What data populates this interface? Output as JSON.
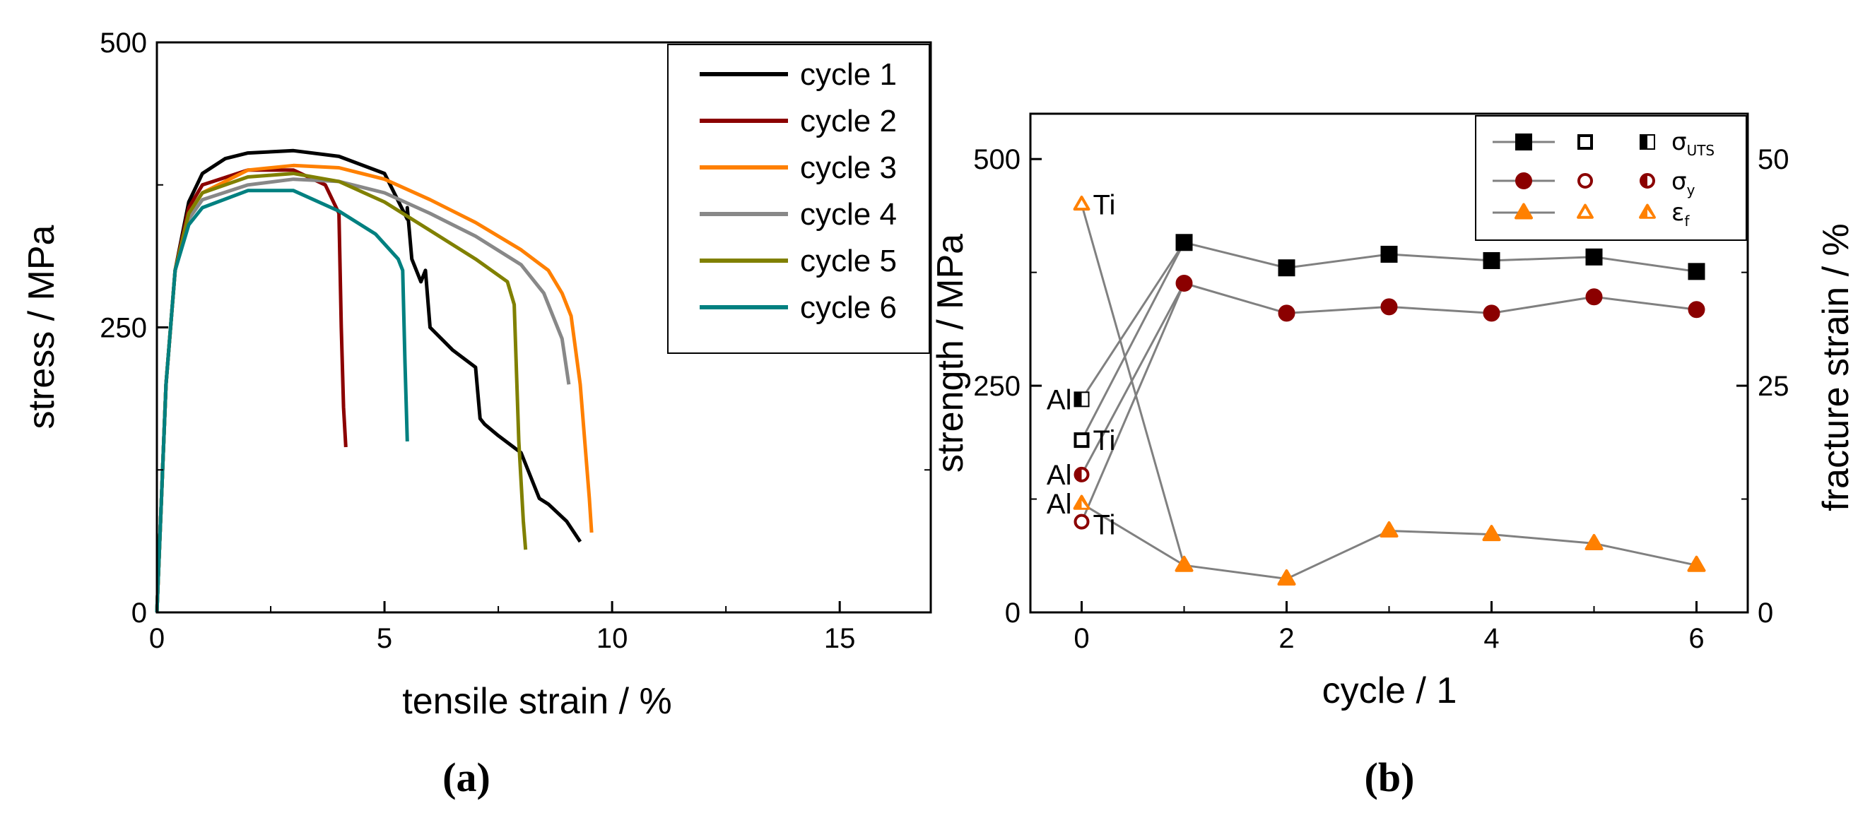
{
  "chart_data": [
    {
      "type": "line",
      "panel_label": "(a)",
      "xlabel": "tensile strain / %",
      "ylabel": "stress / MPa",
      "xlim": [
        0,
        17
      ],
      "ylim": [
        0,
        500
      ],
      "xticks": [
        0,
        5,
        10,
        15
      ],
      "yticks": [
        0,
        250,
        500
      ],
      "legend_position": "top-right",
      "series": [
        {
          "name": "cycle 1",
          "color": "#000000",
          "x": [
            0,
            0.2,
            0.4,
            0.7,
            1.0,
            1.5,
            2.0,
            3.0,
            4.0,
            5.0,
            5.5,
            5.5,
            5.6,
            5.8,
            5.9,
            6.0,
            6.5,
            7.0,
            7.1,
            7.2,
            7.5,
            8.0,
            8.4,
            8.6,
            9.0,
            9.3
          ],
          "y": [
            0,
            200,
            300,
            360,
            385,
            398,
            403,
            405,
            400,
            385,
            345,
            355,
            310,
            290,
            300,
            250,
            230,
            215,
            170,
            165,
            155,
            140,
            100,
            95,
            80,
            62
          ]
        },
        {
          "name": "cycle 2",
          "color": "#8b0000",
          "x": [
            0,
            0.2,
            0.4,
            0.7,
            1.0,
            2.0,
            3.0,
            3.7,
            4.0,
            4.05,
            4.1,
            4.15
          ],
          "y": [
            0,
            200,
            300,
            355,
            375,
            388,
            388,
            375,
            350,
            250,
            180,
            145
          ]
        },
        {
          "name": "cycle 3",
          "color": "#ff8000",
          "x": [
            0,
            0.2,
            0.4,
            0.7,
            1.0,
            2.0,
            3.0,
            4.0,
            5.0,
            6.0,
            7.0,
            8.0,
            8.6,
            8.9,
            9.1,
            9.3,
            9.5,
            9.55
          ],
          "y": [
            0,
            200,
            300,
            350,
            368,
            388,
            392,
            390,
            380,
            362,
            342,
            318,
            300,
            280,
            260,
            200,
            100,
            70
          ]
        },
        {
          "name": "cycle 4",
          "color": "#888888",
          "x": [
            0,
            0.2,
            0.4,
            0.7,
            1.0,
            2.0,
            3.0,
            4.0,
            5.0,
            6.0,
            7.0,
            8.0,
            8.5,
            8.7,
            8.9,
            9.05
          ],
          "y": [
            0,
            200,
            300,
            345,
            362,
            375,
            380,
            378,
            368,
            350,
            330,
            305,
            280,
            260,
            240,
            200
          ]
        },
        {
          "name": "cycle 5",
          "color": "#808000",
          "x": [
            0,
            0.2,
            0.4,
            0.7,
            1.0,
            2.0,
            3.0,
            4.0,
            5.0,
            6.0,
            7.0,
            7.7,
            7.85,
            7.95,
            8.05,
            8.1
          ],
          "y": [
            0,
            200,
            300,
            350,
            368,
            382,
            385,
            378,
            360,
            335,
            310,
            290,
            270,
            150,
            80,
            55
          ]
        },
        {
          "name": "cycle 6",
          "color": "#008080",
          "x": [
            0,
            0.2,
            0.4,
            0.7,
            1.0,
            2.0,
            3.0,
            4.0,
            4.8,
            5.3,
            5.4,
            5.45,
            5.5
          ],
          "y": [
            0,
            200,
            300,
            340,
            355,
            370,
            370,
            352,
            332,
            310,
            300,
            220,
            150
          ]
        }
      ]
    },
    {
      "type": "scatter",
      "panel_label": "(b)",
      "xlabel": "cycle / 1",
      "ylabel": "strength / MPa",
      "ylabel_right": "fracture strain / %",
      "xlim": [
        -0.5,
        6.5
      ],
      "ylim": [
        0,
        550
      ],
      "ylim_right": [
        0,
        55
      ],
      "xticks": [
        0,
        2,
        4,
        6
      ],
      "yticks": [
        0,
        250,
        500
      ],
      "yticks_right": [
        0,
        25,
        50
      ],
      "colors": {
        "uts": "#000000",
        "yield": "#8b0000",
        "strain": "#ff8000",
        "connector": "#808080"
      },
      "legend": [
        {
          "symbol": "σ",
          "subscript": "UTS"
        },
        {
          "symbol": "σ",
          "subscript": "y"
        },
        {
          "symbol": "ε",
          "subscript": "f"
        }
      ],
      "series": [
        {
          "name": "σUTS",
          "axis": "left",
          "x": [
            1,
            2,
            3,
            4,
            5,
            6
          ],
          "y": [
            408,
            380,
            395,
            388,
            392,
            376
          ]
        },
        {
          "name": "σy",
          "axis": "left",
          "x": [
            1,
            2,
            3,
            4,
            5,
            6
          ],
          "y": [
            363,
            330,
            337,
            330,
            348,
            334
          ]
        },
        {
          "name": "εf",
          "axis": "right",
          "x": [
            1,
            2,
            3,
            4,
            5,
            6
          ],
          "y": [
            5.2,
            3.7,
            9.0,
            8.6,
            7.6,
            5.2
          ]
        }
      ],
      "references": [
        {
          "label": "Al",
          "series": "σUTS",
          "x": 0,
          "y": 235,
          "style": "half",
          "axis": "left"
        },
        {
          "label": "Ti",
          "series": "σUTS",
          "x": 0,
          "y": 190,
          "style": "open",
          "axis": "left"
        },
        {
          "label": "Al",
          "series": "σy",
          "x": 0,
          "y": 152,
          "style": "half",
          "axis": "left"
        },
        {
          "label": "Ti",
          "series": "σy",
          "x": 0,
          "y": 100,
          "style": "open",
          "axis": "left"
        },
        {
          "label": "Ti",
          "series": "εf",
          "x": 0,
          "y": 45,
          "style": "open",
          "axis": "right"
        },
        {
          "label": "Al",
          "series": "εf",
          "x": 0,
          "y": 12,
          "style": "half",
          "axis": "right"
        }
      ]
    }
  ]
}
